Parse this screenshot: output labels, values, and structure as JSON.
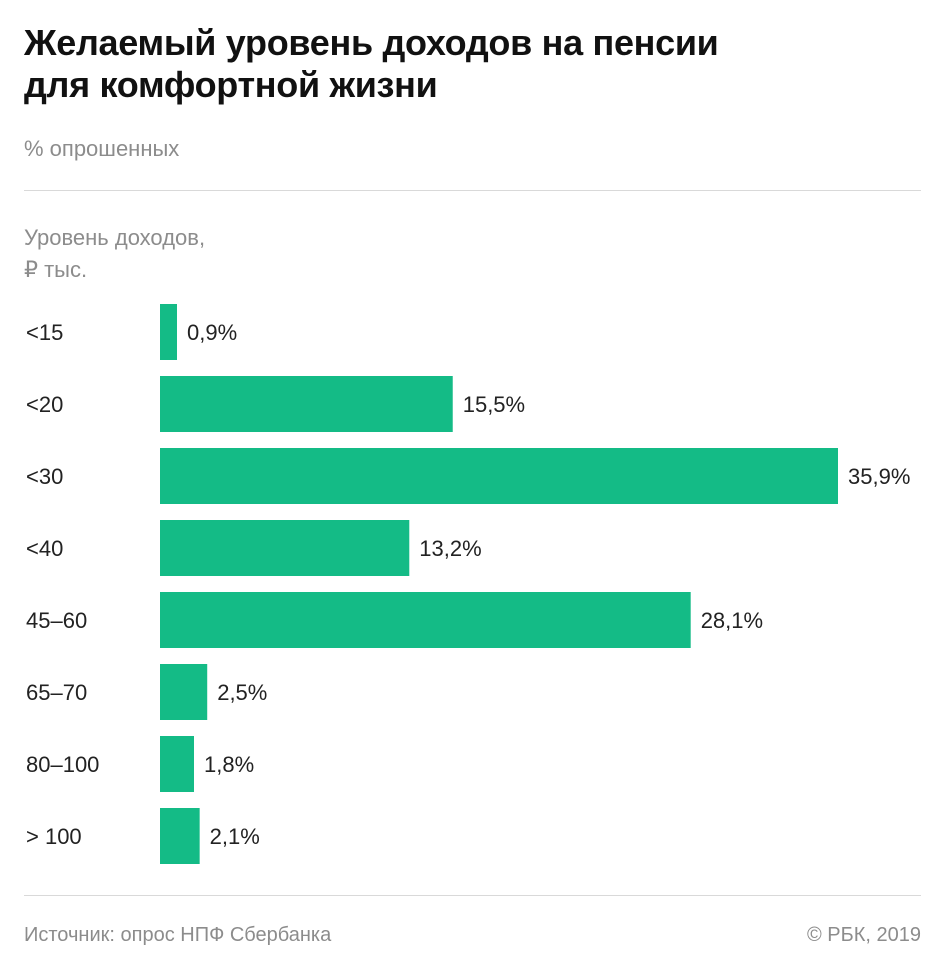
{
  "header": {
    "title_line1": "Желаемый уровень доходов на пенсии",
    "title_line2": "для комфортной жизни",
    "subtitle": "% опрошенных"
  },
  "axis": {
    "label_line1": "Уровень доходов,",
    "label_line2": "₽ тыс."
  },
  "chart_data": {
    "type": "bar",
    "orientation": "horizontal",
    "title": "Желаемый уровень доходов на пенсии для комфортной жизни",
    "subtitle": "% опрошенных",
    "ylabel": "Уровень доходов, ₽ тыс.",
    "categories": [
      "<15",
      "<20",
      "<30",
      "<40",
      "45–60",
      "65–70",
      "80–100",
      "> 100"
    ],
    "values": [
      0.9,
      15.5,
      35.9,
      13.2,
      28.1,
      2.5,
      1.8,
      2.1
    ],
    "value_labels": [
      "0,9%",
      "15,5%",
      "35,9%",
      "13,2%",
      "28,1%",
      "2,5%",
      "1,8%",
      "2,1%"
    ],
    "bar_color": "#14bb86",
    "grid": false
  },
  "footer": {
    "source": "Источник: опрос НПФ Сбербанка",
    "copyright": "© РБК, 2019"
  }
}
